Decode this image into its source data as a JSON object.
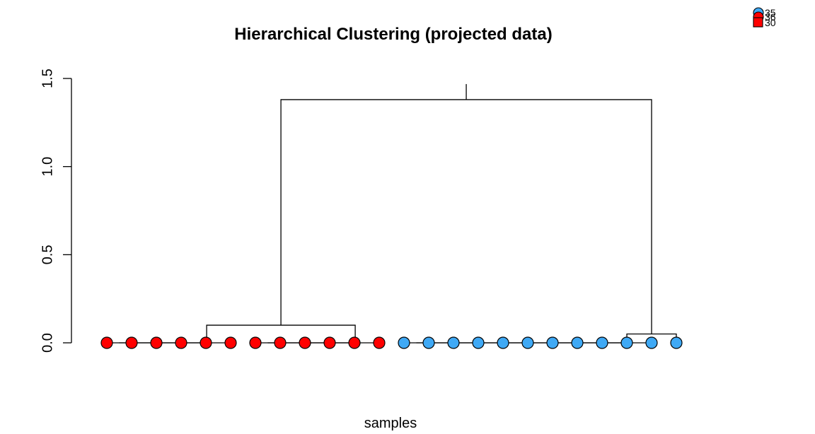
{
  "chart_data": {
    "type": "dendrogram",
    "title": "Hierarchical Clustering (projected data)",
    "xlabel": "samples",
    "ylabel": "",
    "ylim": [
      0,
      1.5
    ],
    "y_ticks": [
      "0.0",
      "0.5",
      "1.0",
      "1.5"
    ],
    "grid": false,
    "legend_position": "top-right",
    "legend_entries": [
      "35",
      "36",
      "30"
    ],
    "leaves": [
      {
        "group": "red"
      },
      {
        "group": "red"
      },
      {
        "group": "red"
      },
      {
        "group": "red"
      },
      {
        "group": "red"
      },
      {
        "group": "red"
      },
      {
        "group": "red"
      },
      {
        "group": "red"
      },
      {
        "group": "red"
      },
      {
        "group": "red"
      },
      {
        "group": "red"
      },
      {
        "group": "red"
      },
      {
        "group": "blue"
      },
      {
        "group": "blue"
      },
      {
        "group": "blue"
      },
      {
        "group": "blue"
      },
      {
        "group": "blue"
      },
      {
        "group": "blue"
      },
      {
        "group": "blue"
      },
      {
        "group": "blue"
      },
      {
        "group": "blue"
      },
      {
        "group": "blue"
      },
      {
        "group": "blue"
      },
      {
        "group": "blue"
      }
    ],
    "merges": [
      {
        "left": {
          "leaf": 0
        },
        "right": {
          "leaf": 1
        },
        "height": 0.0
      },
      {
        "left": {
          "node": 0
        },
        "right": {
          "leaf": 2
        },
        "height": 0.0
      },
      {
        "left": {
          "node": 1
        },
        "right": {
          "leaf": 3
        },
        "height": 0.0
      },
      {
        "left": {
          "node": 2
        },
        "right": {
          "leaf": 4
        },
        "height": 0.0
      },
      {
        "left": {
          "node": 3
        },
        "right": {
          "leaf": 5
        },
        "height": 0.0
      },
      {
        "left": {
          "leaf": 6
        },
        "right": {
          "leaf": 7
        },
        "height": 0.0
      },
      {
        "left": {
          "node": 5
        },
        "right": {
          "leaf": 8
        },
        "height": 0.0
      },
      {
        "left": {
          "node": 6
        },
        "right": {
          "leaf": 9
        },
        "height": 0.0
      },
      {
        "left": {
          "node": 7
        },
        "right": {
          "leaf": 10
        },
        "height": 0.0
      },
      {
        "left": {
          "node": 8
        },
        "right": {
          "leaf": 11
        },
        "height": 0.0
      },
      {
        "left": {
          "node": 4
        },
        "right": {
          "node": 9
        },
        "height": 0.1
      },
      {
        "left": {
          "leaf": 12
        },
        "right": {
          "leaf": 13
        },
        "height": 0.0
      },
      {
        "left": {
          "node": 11
        },
        "right": {
          "leaf": 14
        },
        "height": 0.0
      },
      {
        "left": {
          "node": 12
        },
        "right": {
          "leaf": 15
        },
        "height": 0.0
      },
      {
        "left": {
          "node": 13
        },
        "right": {
          "leaf": 16
        },
        "height": 0.0
      },
      {
        "left": {
          "node": 14
        },
        "right": {
          "leaf": 17
        },
        "height": 0.0
      },
      {
        "left": {
          "node": 15
        },
        "right": {
          "leaf": 18
        },
        "height": 0.0
      },
      {
        "left": {
          "node": 16
        },
        "right": {
          "leaf": 19
        },
        "height": 0.0
      },
      {
        "left": {
          "node": 17
        },
        "right": {
          "leaf": 20
        },
        "height": 0.0
      },
      {
        "left": {
          "node": 18
        },
        "right": {
          "leaf": 21
        },
        "height": 0.0
      },
      {
        "left": {
          "node": 19
        },
        "right": {
          "leaf": 22
        },
        "height": 0.0
      },
      {
        "left": {
          "node": 20
        },
        "right": {
          "leaf": 23
        },
        "height": 0.05
      },
      {
        "left": {
          "node": 10
        },
        "right": {
          "node": 21
        },
        "height": 1.38
      }
    ],
    "colors": {
      "red": "#ff0000",
      "blue": "#3fa9f5",
      "line": "#000000"
    }
  }
}
